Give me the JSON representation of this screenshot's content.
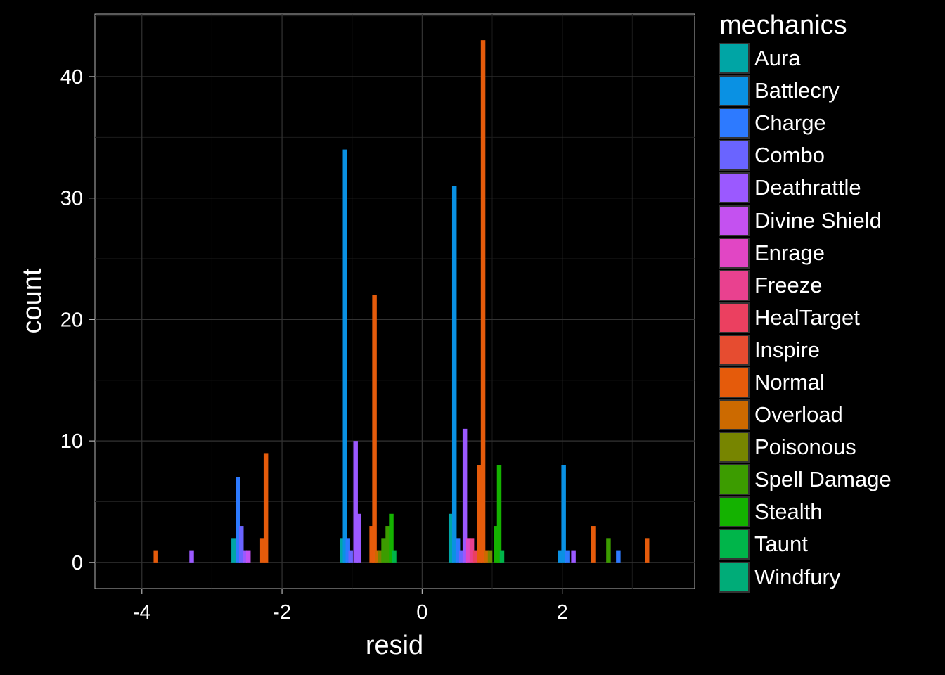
{
  "chart_data": {
    "type": "bar",
    "xlabel": "resid",
    "ylabel": "count",
    "xlim": [
      -4.67,
      3.89
    ],
    "ylim": [
      -2.15,
      45.15
    ],
    "x_ticks": [
      -4,
      -2,
      0,
      2
    ],
    "y_ticks": [
      0,
      10,
      20,
      30,
      40
    ],
    "grid": true,
    "legend": {
      "title": "mechanics",
      "position": "right"
    },
    "bin_width": 0.065,
    "series": [
      {
        "name": "Aura",
        "color": "#00A5A5"
      },
      {
        "name": "Battlecry",
        "color": "#0A91E3"
      },
      {
        "name": "Charge",
        "color": "#2D7AFF"
      },
      {
        "name": "Combo",
        "color": "#6A64FF"
      },
      {
        "name": "Deathrattle",
        "color": "#9B59FF"
      },
      {
        "name": "Divine Shield",
        "color": "#C451F0"
      },
      {
        "name": "Enrage",
        "color": "#E146C4"
      },
      {
        "name": "Freeze",
        "color": "#E9418F"
      },
      {
        "name": "HealTarget",
        "color": "#EB4060"
      },
      {
        "name": "Inspire",
        "color": "#E64C30"
      },
      {
        "name": "Normal",
        "color": "#E55B0B"
      },
      {
        "name": "Overload",
        "color": "#CC6A00"
      },
      {
        "name": "Poisonous",
        "color": "#778500"
      },
      {
        "name": "Spell Damage",
        "color": "#3C9C00"
      },
      {
        "name": "Stealth",
        "color": "#14B200"
      },
      {
        "name": "Taunt",
        "color": "#00B54A"
      },
      {
        "name": "Windfury",
        "color": "#00AC78"
      }
    ],
    "bars": [
      {
        "series": "Normal",
        "x": -3.8,
        "y": 1
      },
      {
        "series": "Deathrattle",
        "x": -3.29,
        "y": 1
      },
      {
        "series": "Aura",
        "x": -2.69,
        "y": 2
      },
      {
        "series": "Charge",
        "x": -2.63,
        "y": 7
      },
      {
        "series": "Combo",
        "x": -2.58,
        "y": 3
      },
      {
        "series": "Deathrattle",
        "x": -2.53,
        "y": 1
      },
      {
        "series": "Divine Shield",
        "x": -2.48,
        "y": 1
      },
      {
        "series": "Normal",
        "x": -2.28,
        "y": 2
      },
      {
        "series": "Normal",
        "x": -2.23,
        "y": 9
      },
      {
        "series": "Aura",
        "x": -1.14,
        "y": 2
      },
      {
        "series": "Battlecry",
        "x": -1.1,
        "y": 34
      },
      {
        "series": "Charge",
        "x": -1.06,
        "y": 2
      },
      {
        "series": "Combo",
        "x": -1.02,
        "y": 1
      },
      {
        "series": "Deathrattle",
        "x": -0.95,
        "y": 10
      },
      {
        "series": "Deathrattle",
        "x": -0.9,
        "y": 4
      },
      {
        "series": "Normal",
        "x": -0.72,
        "y": 3
      },
      {
        "series": "Normal",
        "x": -0.68,
        "y": 22
      },
      {
        "series": "Overload",
        "x": -0.64,
        "y": 1
      },
      {
        "series": "Poisonous",
        "x": -0.6,
        "y": 1
      },
      {
        "series": "Spell Damage",
        "x": -0.55,
        "y": 2
      },
      {
        "series": "Spell Damage",
        "x": -0.49,
        "y": 3
      },
      {
        "series": "Stealth",
        "x": -0.44,
        "y": 4
      },
      {
        "series": "Taunt",
        "x": -0.4,
        "y": 1
      },
      {
        "series": "Aura",
        "x": 0.41,
        "y": 4
      },
      {
        "series": "Battlecry",
        "x": 0.46,
        "y": 31
      },
      {
        "series": "Charge",
        "x": 0.51,
        "y": 2
      },
      {
        "series": "Combo",
        "x": 0.56,
        "y": 1
      },
      {
        "series": "Deathrattle",
        "x": 0.61,
        "y": 11
      },
      {
        "series": "Enrage",
        "x": 0.66,
        "y": 2
      },
      {
        "series": "Freeze",
        "x": 0.71,
        "y": 2
      },
      {
        "series": "HealTarget",
        "x": 0.76,
        "y": 1
      },
      {
        "series": "Normal",
        "x": 0.82,
        "y": 8
      },
      {
        "series": "Normal",
        "x": 0.87,
        "y": 43
      },
      {
        "series": "Overload",
        "x": 0.92,
        "y": 1
      },
      {
        "series": "Poisonous",
        "x": 0.97,
        "y": 1
      },
      {
        "series": "Stealth",
        "x": 1.06,
        "y": 3
      },
      {
        "series": "Stealth",
        "x": 1.1,
        "y": 8
      },
      {
        "series": "Taunt",
        "x": 1.14,
        "y": 1
      },
      {
        "series": "Battlecry",
        "x": 1.97,
        "y": 1
      },
      {
        "series": "Battlecry",
        "x": 2.02,
        "y": 8
      },
      {
        "series": "Charge",
        "x": 2.07,
        "y": 1
      },
      {
        "series": "Deathrattle",
        "x": 2.16,
        "y": 1
      },
      {
        "series": "Normal",
        "x": 2.44,
        "y": 3
      },
      {
        "series": "Spell Damage",
        "x": 2.66,
        "y": 2
      },
      {
        "series": "Charge",
        "x": 2.8,
        "y": 1
      },
      {
        "series": "Normal",
        "x": 3.21,
        "y": 2
      }
    ]
  }
}
